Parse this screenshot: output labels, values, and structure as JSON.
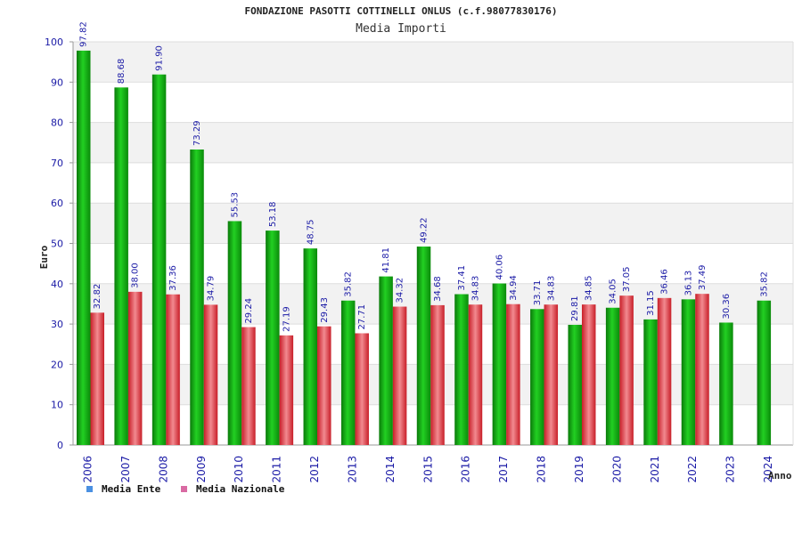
{
  "chart_data": {
    "type": "bar",
    "title": "FONDAZIONE PASOTTI COTTINELLI ONLUS (c.f.98077830176)",
    "subtitle": "Media Importi",
    "ylabel": "Euro",
    "xlabel": "Anno",
    "ylim": [
      0,
      100
    ],
    "yticks": [
      0,
      10,
      20,
      30,
      40,
      50,
      60,
      70,
      80,
      90,
      100
    ],
    "grid": true,
    "legend_position": "bottom-left",
    "categories": [
      "2006",
      "2007",
      "2008",
      "2009",
      "2010",
      "2011",
      "2012",
      "2013",
      "2014",
      "2015",
      "2016",
      "2017",
      "2018",
      "2019",
      "2020",
      "2021",
      "2022",
      "2023",
      "2024"
    ],
    "series": [
      {
        "name": "Media Ente",
        "legend_color": "#4a90e2",
        "color": "#1aa81a",
        "values": [
          97.82,
          88.68,
          91.9,
          73.29,
          55.53,
          53.18,
          48.75,
          35.82,
          41.81,
          49.22,
          37.41,
          40.06,
          33.71,
          29.81,
          34.05,
          31.15,
          36.13,
          30.36,
          35.82
        ],
        "labels": [
          "97.82",
          "88.68",
          "91.90",
          "73.29",
          "55.53",
          "53.18",
          "48.75",
          "35.82",
          "41.81",
          "49.22",
          "37.41",
          "40.06",
          "33.71",
          "29.81",
          "34.05",
          "31.15",
          "36.13",
          "30.36",
          "35.82"
        ]
      },
      {
        "name": "Media Nazionale",
        "legend_color": "#d96aa3",
        "color": "#e0303a",
        "values": [
          32.82,
          38.0,
          37.36,
          34.79,
          29.24,
          27.19,
          29.43,
          27.71,
          34.32,
          34.68,
          34.83,
          34.94,
          34.83,
          34.85,
          37.05,
          36.46,
          37.49,
          null,
          null
        ],
        "labels": [
          "32.82",
          "38.00",
          "37.36",
          "34.79",
          "29.24",
          "27.19",
          "29.43",
          "27.71",
          "34.32",
          "34.68",
          "34.83",
          "34.94",
          "34.83",
          "34.85",
          "37.05",
          "36.46",
          "37.49",
          null,
          null
        ]
      }
    ]
  }
}
